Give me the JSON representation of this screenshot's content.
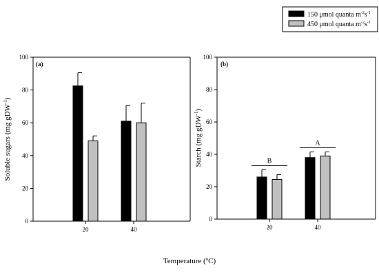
{
  "chart_data": [
    {
      "type": "bar",
      "panel_label": "(a)",
      "categories": [
        "20",
        "40"
      ],
      "series": [
        {
          "name": "150 μmol quanta m-2s-1",
          "values": [
            82.5,
            61
          ],
          "errors": [
            8,
            9.5
          ],
          "color": "#000000"
        },
        {
          "name": "450 μmol quanta m-2s-1",
          "values": [
            49,
            60
          ],
          "errors": [
            3,
            12
          ],
          "color": "#c0c0c0"
        }
      ],
      "ylabel": "Soluble sugars (mg gDW",
      "ylabel_sup": "-1",
      "ylabel_close": ")",
      "ylim": [
        0,
        100
      ],
      "yticks": [
        "0",
        "20",
        "40",
        "60",
        "80",
        "100"
      ],
      "grid": false
    },
    {
      "type": "bar",
      "panel_label": "(b)",
      "categories": [
        "20",
        "40"
      ],
      "series": [
        {
          "name": "150 μmol quanta m-2s-1",
          "values": [
            26,
            38
          ],
          "errors": [
            4.5,
            3.5
          ],
          "color": "#000000"
        },
        {
          "name": "450 μmol quanta m-2s-1",
          "values": [
            24.5,
            39
          ],
          "errors": [
            3,
            2.5
          ],
          "color": "#c0c0c0"
        }
      ],
      "annotations": [
        "B",
        "A"
      ],
      "ylabel": "Starch (mg gDW",
      "ylabel_sup": "-1",
      "ylabel_close": ")",
      "ylim": [
        0,
        100
      ],
      "yticks": [
        "0",
        "20",
        "40",
        "60",
        "80",
        "100"
      ],
      "grid": false
    }
  ],
  "legend": {
    "placement": "top-right",
    "items": [
      {
        "text": "150 μmol quanta m",
        "sup1": "-2",
        "mid": "s",
        "sup2": "-1",
        "color": "#000000"
      },
      {
        "text": "450 μmol quanta m",
        "sup1": "-2",
        "mid": "s",
        "sup2": "-1",
        "color": "#c0c0c0"
      }
    ]
  },
  "xlabel": {
    "text": "Temperature (",
    "sup": "o",
    "close": "C)"
  }
}
